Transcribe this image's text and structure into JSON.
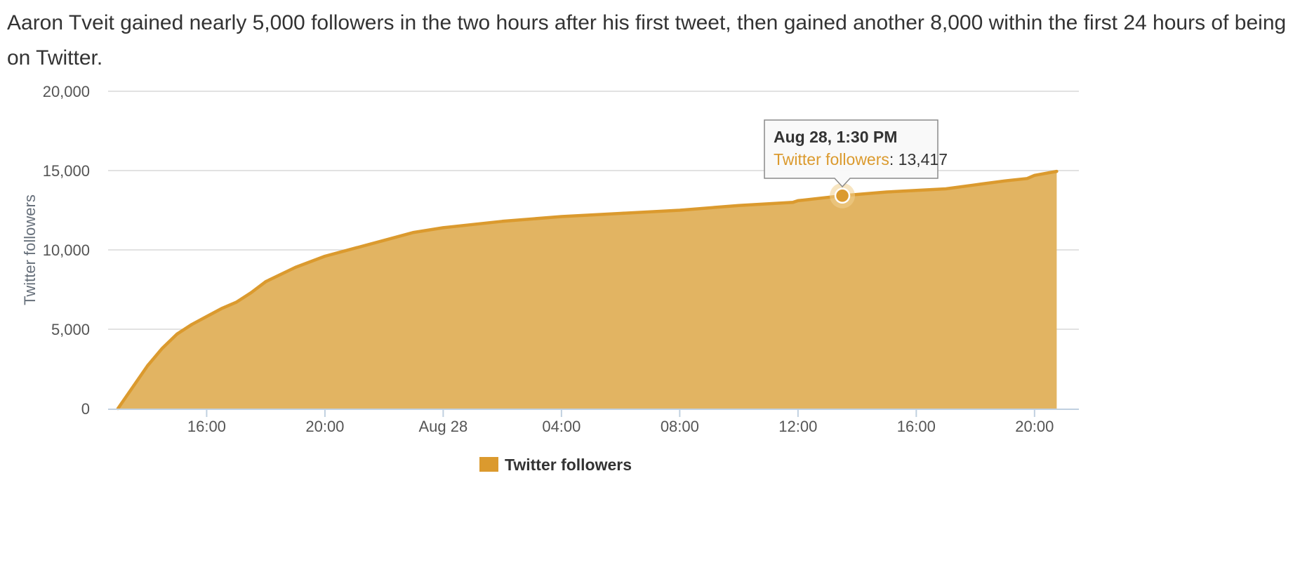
{
  "caption": "Aaron Tveit gained nearly 5,000 followers in the two hours after his first tweet, then gained another 8,000 within the first 24 hours of being on Twitter.",
  "colors": {
    "series": "#DB9A2E",
    "fill": "#E2B462",
    "grid": "#D8D8D8",
    "axis": "#C0D0E0"
  },
  "chart_data": {
    "type": "area",
    "title": "",
    "xlabel": "",
    "ylabel": "Twitter followers",
    "x_unit": "time",
    "xlim": [
      "Aug 27 12:40",
      "Aug 28 21:30"
    ],
    "ylim": [
      0,
      20000
    ],
    "y_ticks": [
      "0",
      "5,000",
      "10,000",
      "15,000",
      "20,000"
    ],
    "y_tick_values": [
      0,
      5000,
      10000,
      15000,
      20000
    ],
    "x_ticks": [
      "16:00",
      "20:00",
      "Aug 28",
      "04:00",
      "08:00",
      "12:00",
      "16:00",
      "20:00"
    ],
    "x_tick_values": [
      "Aug 27 16:00",
      "Aug 27 20:00",
      "Aug 28 00:00",
      "Aug 28 04:00",
      "Aug 28 08:00",
      "Aug 28 12:00",
      "Aug 28 16:00",
      "Aug 28 20:00"
    ],
    "grid": true,
    "legend_position": "bottom-center",
    "series": [
      {
        "name": "Twitter followers",
        "x": [
          "Aug 27 13:00",
          "Aug 27 14:00",
          "Aug 27 14:30",
          "Aug 27 15:00",
          "Aug 27 15:30",
          "Aug 27 16:00",
          "Aug 27 16:30",
          "Aug 27 17:00",
          "Aug 27 17:30",
          "Aug 27 18:00",
          "Aug 27 19:00",
          "Aug 27 20:00",
          "Aug 27 21:00",
          "Aug 27 22:00",
          "Aug 27 23:00",
          "Aug 28 00:00",
          "Aug 28 01:00",
          "Aug 28 02:00",
          "Aug 28 04:00",
          "Aug 28 06:00",
          "Aug 28 08:00",
          "Aug 28 10:00",
          "Aug 28 11:50",
          "Aug 28 12:00",
          "Aug 28 13:30",
          "Aug 28 15:00",
          "Aug 28 16:00",
          "Aug 28 17:00",
          "Aug 28 18:00",
          "Aug 28 19:00",
          "Aug 28 19:45",
          "Aug 28 20:00",
          "Aug 28 20:45"
        ],
        "y": [
          0,
          2700,
          3800,
          4700,
          5300,
          5800,
          6300,
          6700,
          7300,
          8000,
          8900,
          9600,
          10100,
          10600,
          11100,
          11400,
          11600,
          11800,
          12100,
          12300,
          12500,
          12800,
          13000,
          13100,
          13417,
          13650,
          13750,
          13850,
          14100,
          14350,
          14500,
          14700,
          14950
        ]
      }
    ],
    "tooltip": {
      "title": "Aug 28, 1:30 PM",
      "series": "Twitter followers",
      "value": "13,417",
      "x": "Aug 28 13:30",
      "y": 13417
    },
    "legend": [
      "Twitter followers"
    ]
  }
}
